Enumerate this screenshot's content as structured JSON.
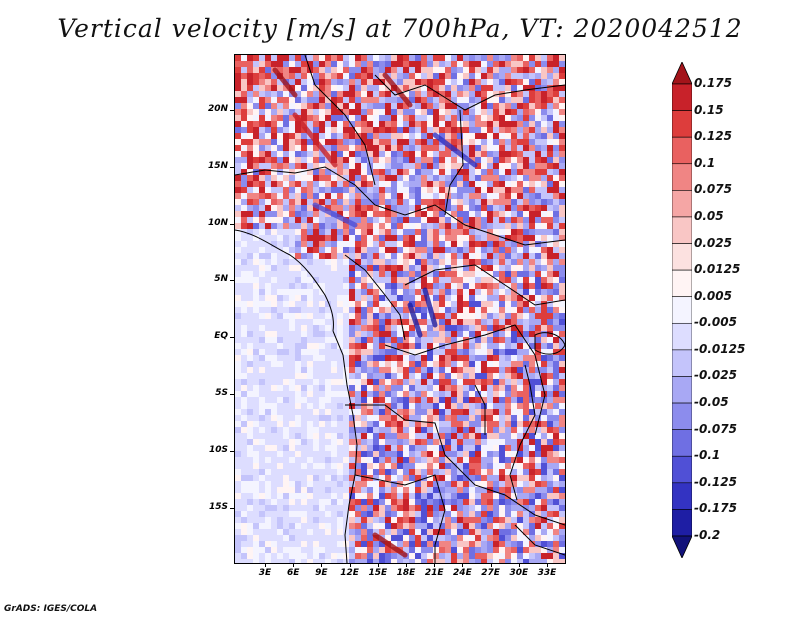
{
  "title": "Vertical velocity [m/s] at 700hPa, VT: 2020042512",
  "map": {
    "variable": "Vertical velocity",
    "units": "m/s",
    "level": "700hPa",
    "valid_time": "2020042512",
    "lat_labels": [
      "20N",
      "15N",
      "10N",
      "5N",
      "EQ",
      "5S",
      "10S",
      "15S"
    ],
    "lon_labels": [
      "3E",
      "6E",
      "9E",
      "12E",
      "15E",
      "18E",
      "21E",
      "24E",
      "27E",
      "30E",
      "33E"
    ]
  },
  "colorbar": {
    "levels": [
      "0.175",
      "0.15",
      "0.125",
      "0.1",
      "0.075",
      "0.05",
      "0.025",
      "0.0125",
      "0.005",
      "-0.005",
      "-0.0125",
      "-0.025",
      "-0.05",
      "-0.075",
      "-0.1",
      "-0.125",
      "-0.175",
      "-0.2"
    ],
    "colors": [
      "#a3141a",
      "#c8222a",
      "#dd3d3c",
      "#e96160",
      "#f08584",
      "#f5a6a5",
      "#f9c6c5",
      "#fce1e0",
      "#fff4f4",
      "#f4f4ff",
      "#ddddff",
      "#c4c4fb",
      "#a8a8f4",
      "#8c8ced",
      "#6f6fe3",
      "#5050d6",
      "#3333c2",
      "#1e1ea4",
      "#12127a"
    ]
  },
  "credit": "GrADS: IGES/COLA"
}
